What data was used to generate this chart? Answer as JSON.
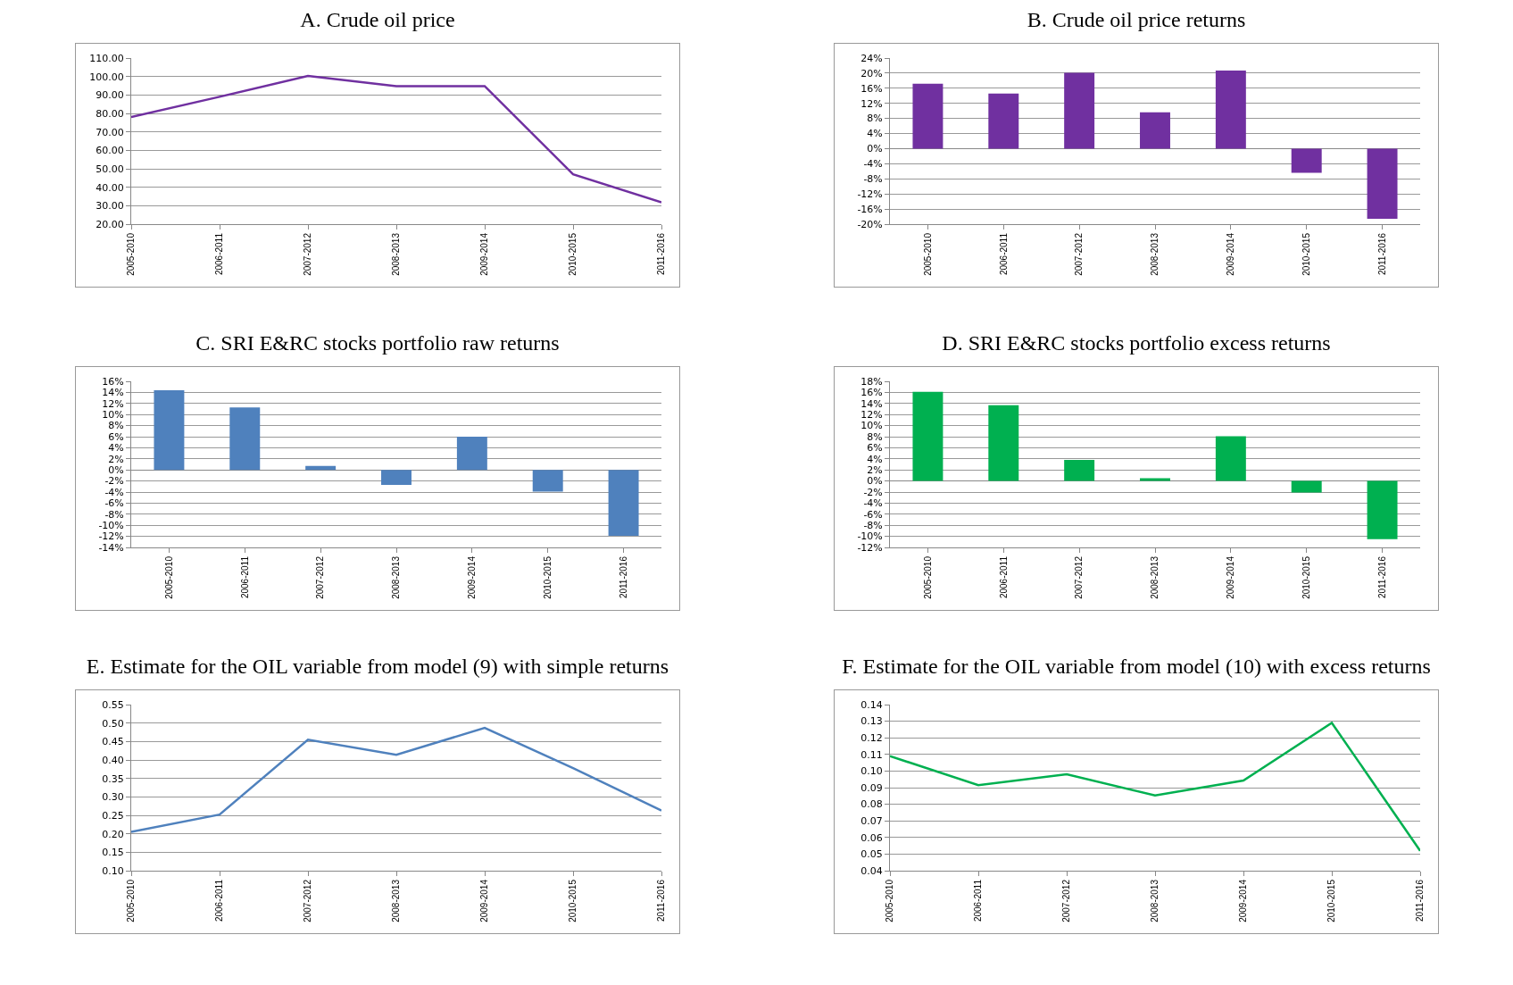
{
  "chart_data": [
    {
      "type": "line",
      "title": "A. Crude oil price",
      "categories": [
        "2005-2010",
        "2006-2011",
        "2007-2012",
        "2008-2013",
        "2009-2014",
        "2010-2015",
        "2011-2016"
      ],
      "values": [
        78,
        89,
        100.3,
        94.8,
        94.8,
        47,
        31.8
      ],
      "color": "#7030a0",
      "ylim": [
        20,
        110
      ],
      "yticks": [
        {
          "value": 20,
          "label": "20.00"
        },
        {
          "value": 30,
          "label": "30.00"
        },
        {
          "value": 40,
          "label": "40.00"
        },
        {
          "value": 50,
          "label": "50.00"
        },
        {
          "value": 60,
          "label": "60.00"
        },
        {
          "value": 70,
          "label": "70.00"
        },
        {
          "value": 80,
          "label": "80.00"
        },
        {
          "value": 90,
          "label": "90.00"
        },
        {
          "value": 100,
          "label": "100.00"
        },
        {
          "value": 110,
          "label": "110.00"
        }
      ],
      "grid": "y",
      "legend": false,
      "marker": "none"
    },
    {
      "type": "bar",
      "title": "B. Crude oil price returns",
      "categories": [
        "2005-2010",
        "2006-2011",
        "2007-2012",
        "2008-2013",
        "2009-2014",
        "2010-2015",
        "2011-2016"
      ],
      "values": [
        17.2,
        14.6,
        20.1,
        9.6,
        20.7,
        -6.4,
        -18.6
      ],
      "color": "#7030a0",
      "ylim": [
        -20,
        24
      ],
      "yticks": [
        {
          "value": -20,
          "label": "-20%"
        },
        {
          "value": -16,
          "label": "-16%"
        },
        {
          "value": -12,
          "label": "-12%"
        },
        {
          "value": -8,
          "label": "-8%"
        },
        {
          "value": -4,
          "label": "-4%"
        },
        {
          "value": 0,
          "label": "0%"
        },
        {
          "value": 4,
          "label": "4%"
        },
        {
          "value": 8,
          "label": "8%"
        },
        {
          "value": 12,
          "label": "12%"
        },
        {
          "value": 16,
          "label": "16%"
        },
        {
          "value": 20,
          "label": "20%"
        },
        {
          "value": 24,
          "label": "24%"
        }
      ],
      "grid": "y",
      "legend": false
    },
    {
      "type": "bar",
      "title": "C. SRI E&RC stocks portfolio raw returns",
      "categories": [
        "2005-2010",
        "2006-2011",
        "2007-2012",
        "2008-2013",
        "2009-2014",
        "2010-2015",
        "2011-2016"
      ],
      "values": [
        14.4,
        11.3,
        0.7,
        -2.7,
        6.0,
        -3.9,
        -11.9
      ],
      "color": "#4f81bd",
      "ylim": [
        -14,
        16
      ],
      "yticks": [
        {
          "value": -14,
          "label": "-14%"
        },
        {
          "value": -12,
          "label": "-12%"
        },
        {
          "value": -10,
          "label": "-10%"
        },
        {
          "value": -8,
          "label": "-8%"
        },
        {
          "value": -6,
          "label": "-6%"
        },
        {
          "value": -4,
          "label": "-4%"
        },
        {
          "value": -2,
          "label": "-2%"
        },
        {
          "value": 0,
          "label": "0%"
        },
        {
          "value": 2,
          "label": "2%"
        },
        {
          "value": 4,
          "label": "4%"
        },
        {
          "value": 6,
          "label": "6%"
        },
        {
          "value": 8,
          "label": "8%"
        },
        {
          "value": 10,
          "label": "10%"
        },
        {
          "value": 12,
          "label": "12%"
        },
        {
          "value": 14,
          "label": "14%"
        },
        {
          "value": 16,
          "label": "16%"
        }
      ],
      "grid": "y",
      "legend": false
    },
    {
      "type": "bar",
      "title": "D. SRI E&RC stocks portfolio excess returns",
      "categories": [
        "2005-2010",
        "2006-2011",
        "2007-2012",
        "2008-2013",
        "2009-2014",
        "2010-2015",
        "2011-2016"
      ],
      "values": [
        16.1,
        13.7,
        3.8,
        0.5,
        8.1,
        -2.1,
        -10.5
      ],
      "color": "#00b050",
      "ylim": [
        -12,
        18
      ],
      "yticks": [
        {
          "value": -12,
          "label": "-12%"
        },
        {
          "value": -10,
          "label": "-10%"
        },
        {
          "value": -8,
          "label": "-8%"
        },
        {
          "value": -6,
          "label": "-6%"
        },
        {
          "value": -4,
          "label": "-4%"
        },
        {
          "value": -2,
          "label": "-2%"
        },
        {
          "value": 0,
          "label": "0%"
        },
        {
          "value": 2,
          "label": "2%"
        },
        {
          "value": 4,
          "label": "4%"
        },
        {
          "value": 6,
          "label": "6%"
        },
        {
          "value": 8,
          "label": "8%"
        },
        {
          "value": 10,
          "label": "10%"
        },
        {
          "value": 12,
          "label": "12%"
        },
        {
          "value": 14,
          "label": "14%"
        },
        {
          "value": 16,
          "label": "16%"
        },
        {
          "value": 18,
          "label": "18%"
        }
      ],
      "grid": "y",
      "legend": false
    },
    {
      "type": "line",
      "title": "E. Estimate for the OIL variable from model (9) with simple returns",
      "categories": [
        "2005-2010",
        "2006-2011",
        "2007-2012",
        "2008-2013",
        "2009-2014",
        "2010-2015",
        "2011-2016"
      ],
      "values": [
        0.205,
        0.252,
        0.455,
        0.414,
        0.487,
        0.378,
        0.263
      ],
      "color": "#4f81bd",
      "ylim": [
        0.1,
        0.55
      ],
      "yticks": [
        {
          "value": 0.1,
          "label": "0.10"
        },
        {
          "value": 0.15,
          "label": "0.15"
        },
        {
          "value": 0.2,
          "label": "0.20"
        },
        {
          "value": 0.25,
          "label": "0.25"
        },
        {
          "value": 0.3,
          "label": "0.30"
        },
        {
          "value": 0.35,
          "label": "0.35"
        },
        {
          "value": 0.4,
          "label": "0.40"
        },
        {
          "value": 0.45,
          "label": "0.45"
        },
        {
          "value": 0.5,
          "label": "0.50"
        },
        {
          "value": 0.55,
          "label": "0.55"
        }
      ],
      "grid": "y",
      "legend": false,
      "marker": "none"
    },
    {
      "type": "line",
      "title": "F. Estimate for the OIL variable from model (10) with excess returns",
      "categories": [
        "2005-2010",
        "2006-2011",
        "2007-2012",
        "2008-2013",
        "2009-2014",
        "2010-2015",
        "2011-2016"
      ],
      "values": [
        0.109,
        0.0915,
        0.098,
        0.0853,
        0.0943,
        0.129,
        0.052
      ],
      "color": "#00b050",
      "ylim": [
        0.04,
        0.14
      ],
      "yticks": [
        {
          "value": 0.04,
          "label": "0.04"
        },
        {
          "value": 0.05,
          "label": "0.05"
        },
        {
          "value": 0.06,
          "label": "0.06"
        },
        {
          "value": 0.07,
          "label": "0.07"
        },
        {
          "value": 0.08,
          "label": "0.08"
        },
        {
          "value": 0.09,
          "label": "0.09"
        },
        {
          "value": 0.1,
          "label": "0.10"
        },
        {
          "value": 0.11,
          "label": "0.11"
        },
        {
          "value": 0.12,
          "label": "0.12"
        },
        {
          "value": 0.13,
          "label": "0.13"
        },
        {
          "value": 0.14,
          "label": "0.14"
        }
      ],
      "grid": "y",
      "legend": false,
      "marker": "none"
    }
  ]
}
